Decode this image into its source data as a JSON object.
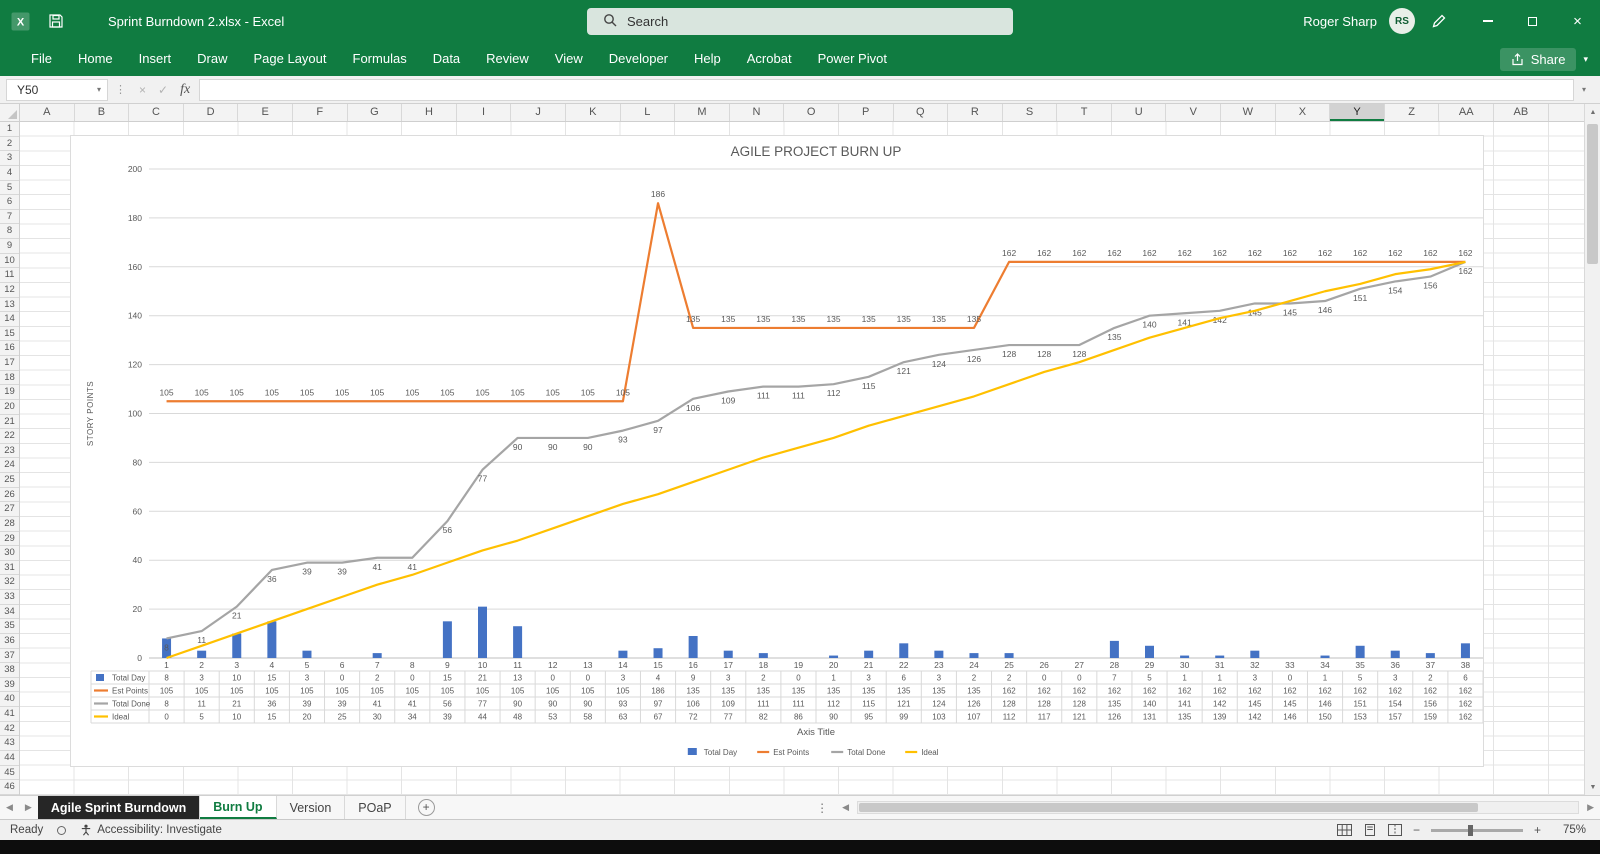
{
  "titlebar": {
    "title": "Sprint Burndown 2.xlsx  -  Excel",
    "search_placeholder": "Search",
    "user_name": "Roger Sharp",
    "user_initials": "RS"
  },
  "icons": {
    "close": "×",
    "cancel": "×",
    "enter": "✓",
    "chevron_down": "▾",
    "dots_vertical": "⋮",
    "arrow_left": "◀",
    "arrow_right": "▶",
    "arrow_up": "▲",
    "arrow_down": "▼",
    "plus": "+",
    "minus": "−"
  },
  "ribbon": {
    "tabs": [
      "File",
      "Home",
      "Insert",
      "Draw",
      "Page Layout",
      "Formulas",
      "Data",
      "Review",
      "View",
      "Developer",
      "Help",
      "Acrobat",
      "Power Pivot"
    ],
    "share_label": "Share"
  },
  "formula_bar": {
    "name_box": "Y50",
    "fx_label": "fx",
    "formula": ""
  },
  "sheet": {
    "columns": [
      "A",
      "B",
      "C",
      "D",
      "E",
      "F",
      "G",
      "H",
      "I",
      "J",
      "K",
      "L",
      "M",
      "N",
      "O",
      "P",
      "Q",
      "R",
      "S",
      "T",
      "U",
      "V",
      "W",
      "X",
      "Y",
      "Z",
      "AA",
      "AB"
    ],
    "selected_column": "Y",
    "rows": [
      1,
      2,
      3,
      4,
      5,
      6,
      7,
      8,
      9,
      10,
      11,
      12,
      13,
      14,
      15,
      16,
      17,
      18,
      19,
      20,
      21,
      22,
      23,
      24,
      25,
      26,
      27,
      28,
      29,
      30,
      31,
      32,
      33,
      34,
      35,
      36,
      37,
      38,
      39,
      40,
      41,
      42,
      43,
      44,
      45,
      46
    ]
  },
  "chart_data": {
    "type": "combo",
    "title": "AGILE PROJECT BURN UP",
    "xlabel": "Axis Title",
    "ylabel": "STORY POINTS",
    "ylim": [
      0,
      200
    ],
    "ytick_interval": 20,
    "grid": true,
    "legend_position": "bottom",
    "data_table": true,
    "categories": [
      1,
      2,
      3,
      4,
      5,
      6,
      7,
      8,
      9,
      10,
      11,
      12,
      13,
      14,
      15,
      16,
      17,
      18,
      19,
      20,
      21,
      22,
      23,
      24,
      25,
      26,
      27,
      28,
      29,
      30,
      31,
      32,
      33,
      34,
      35,
      36,
      37,
      38
    ],
    "series": [
      {
        "name": "Total Day",
        "chart_type": "bar",
        "color": "#4472C4",
        "data_labels": "none",
        "values": [
          8,
          3,
          10,
          15,
          3,
          0,
          2,
          0,
          15,
          21,
          13,
          0,
          0,
          3,
          4,
          9,
          3,
          2,
          0,
          1,
          3,
          6,
          3,
          2,
          2,
          0,
          0,
          7,
          5,
          1,
          1,
          3,
          0,
          1,
          5,
          3,
          2,
          6
        ]
      },
      {
        "name": "Est Points",
        "chart_type": "line",
        "color": "#ED7D31",
        "data_labels": "above",
        "values": [
          105,
          105,
          105,
          105,
          105,
          105,
          105,
          105,
          105,
          105,
          105,
          105,
          105,
          105,
          186,
          135,
          135,
          135,
          135,
          135,
          135,
          135,
          135,
          135,
          162,
          162,
          162,
          162,
          162,
          162,
          162,
          162,
          162,
          162,
          162,
          162,
          162,
          162
        ]
      },
      {
        "name": "Total Done",
        "chart_type": "line",
        "color": "#A5A5A5",
        "data_labels": "below",
        "values": [
          8,
          11,
          21,
          36,
          39,
          39,
          41,
          41,
          56,
          77,
          90,
          90,
          90,
          93,
          97,
          106,
          109,
          111,
          111,
          112,
          115,
          121,
          124,
          126,
          128,
          128,
          128,
          135,
          140,
          141,
          142,
          145,
          145,
          146,
          151,
          154,
          156,
          162
        ]
      },
      {
        "name": "Ideal",
        "chart_type": "line",
        "color": "#FFC000",
        "data_labels": "none",
        "values": [
          0,
          5,
          10,
          15,
          20,
          25,
          30,
          34,
          39,
          44,
          48,
          53,
          58,
          63,
          67,
          72,
          77,
          82,
          86,
          90,
          95,
          99,
          103,
          107,
          112,
          117,
          121,
          126,
          131,
          135,
          139,
          142,
          146,
          150,
          153,
          157,
          159,
          162
        ]
      }
    ]
  },
  "tabbar": {
    "tabs": [
      {
        "label": "Agile Sprint Burndown",
        "style": "dark"
      },
      {
        "label": "Burn Up",
        "style": "active"
      },
      {
        "label": "Version",
        "style": "normal"
      },
      {
        "label": "POaP",
        "style": "normal"
      }
    ]
  },
  "statusbar": {
    "ready": "Ready",
    "accessibility": "Accessibility: Investigate",
    "zoom": "75%"
  }
}
